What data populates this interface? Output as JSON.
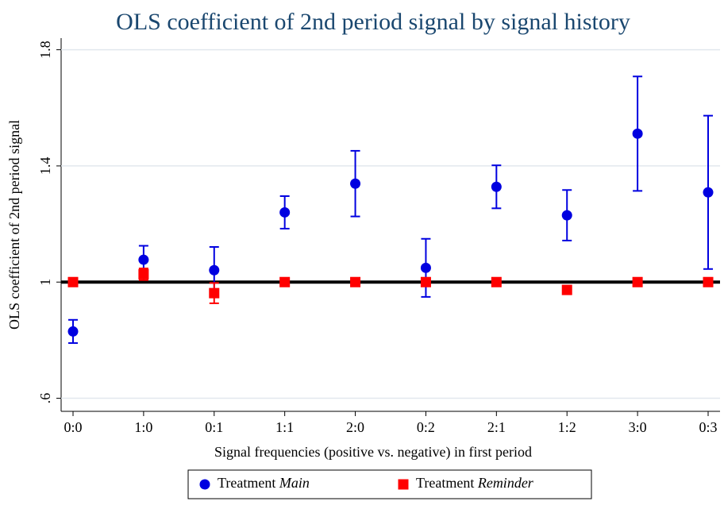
{
  "chart_data": {
    "type": "scatter",
    "title": "OLS coefficient of 2nd period signal by signal history",
    "x_label": "Signal frequencies (positive vs. negative) in first period",
    "y_label": "OLS coefficient of 2nd period signal",
    "categories": [
      "0:0",
      "1:0",
      "0:1",
      "1:1",
      "2:0",
      "0:2",
      "2:1",
      "1:2",
      "3:0",
      "0:3"
    ],
    "series": [
      {
        "name": "Treatment Main",
        "color": "#0000e0",
        "marker": "circle",
        "values": [
          0.83,
          1.077,
          1.041,
          1.24,
          1.339,
          1.049,
          1.328,
          1.23,
          1.511,
          1.309
        ],
        "errors": [
          0.04,
          0.048,
          0.08,
          0.056,
          0.113,
          0.1,
          0.074,
          0.087,
          0.197,
          0.264
        ]
      },
      {
        "name": "Treatment Reminder",
        "color": "#ff0000",
        "marker": "square",
        "values": [
          1,
          1.027,
          0.962,
          1,
          1,
          1,
          1,
          0.973,
          1,
          1
        ],
        "errors": [
          0,
          0.02,
          0.035,
          0,
          0,
          0,
          0,
          0.01,
          0,
          0
        ]
      }
    ],
    "hline": 1,
    "ylim": [
      0.555,
      1.84
    ],
    "yticks": [
      {
        "value": 0.6,
        "label": ".6"
      },
      1,
      1.4,
      1.8
    ],
    "grid": true
  }
}
